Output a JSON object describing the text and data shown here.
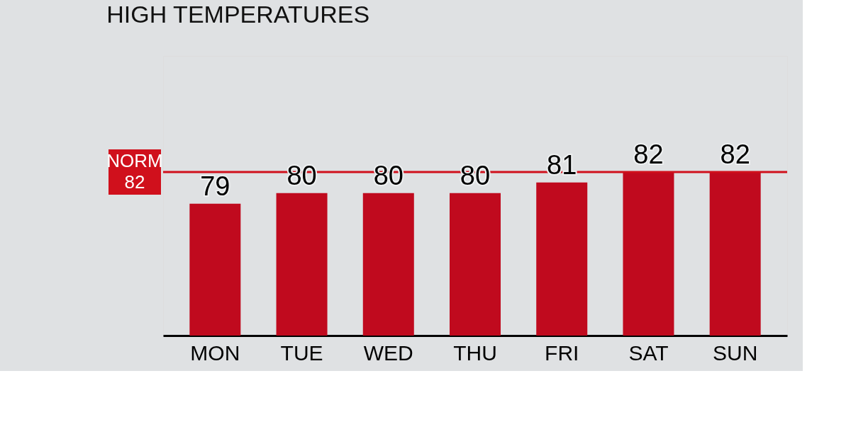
{
  "chart_data": {
    "type": "bar",
    "title": "HIGH TEMPERATURES",
    "categories": [
      "MON",
      "TUE",
      "WED",
      "THU",
      "FRI",
      "SAT",
      "SUN"
    ],
    "values": [
      79,
      80,
      80,
      80,
      81,
      82,
      82
    ],
    "color": "#c00a1e",
    "data_labels": true,
    "ylim": [
      66.5,
      93
    ],
    "tick_labels": "x",
    "grid": false,
    "ref_lines": [
      {
        "axis": "y",
        "value": 82,
        "label": "NORM 82",
        "color": "#d0101c"
      }
    ]
  }
}
